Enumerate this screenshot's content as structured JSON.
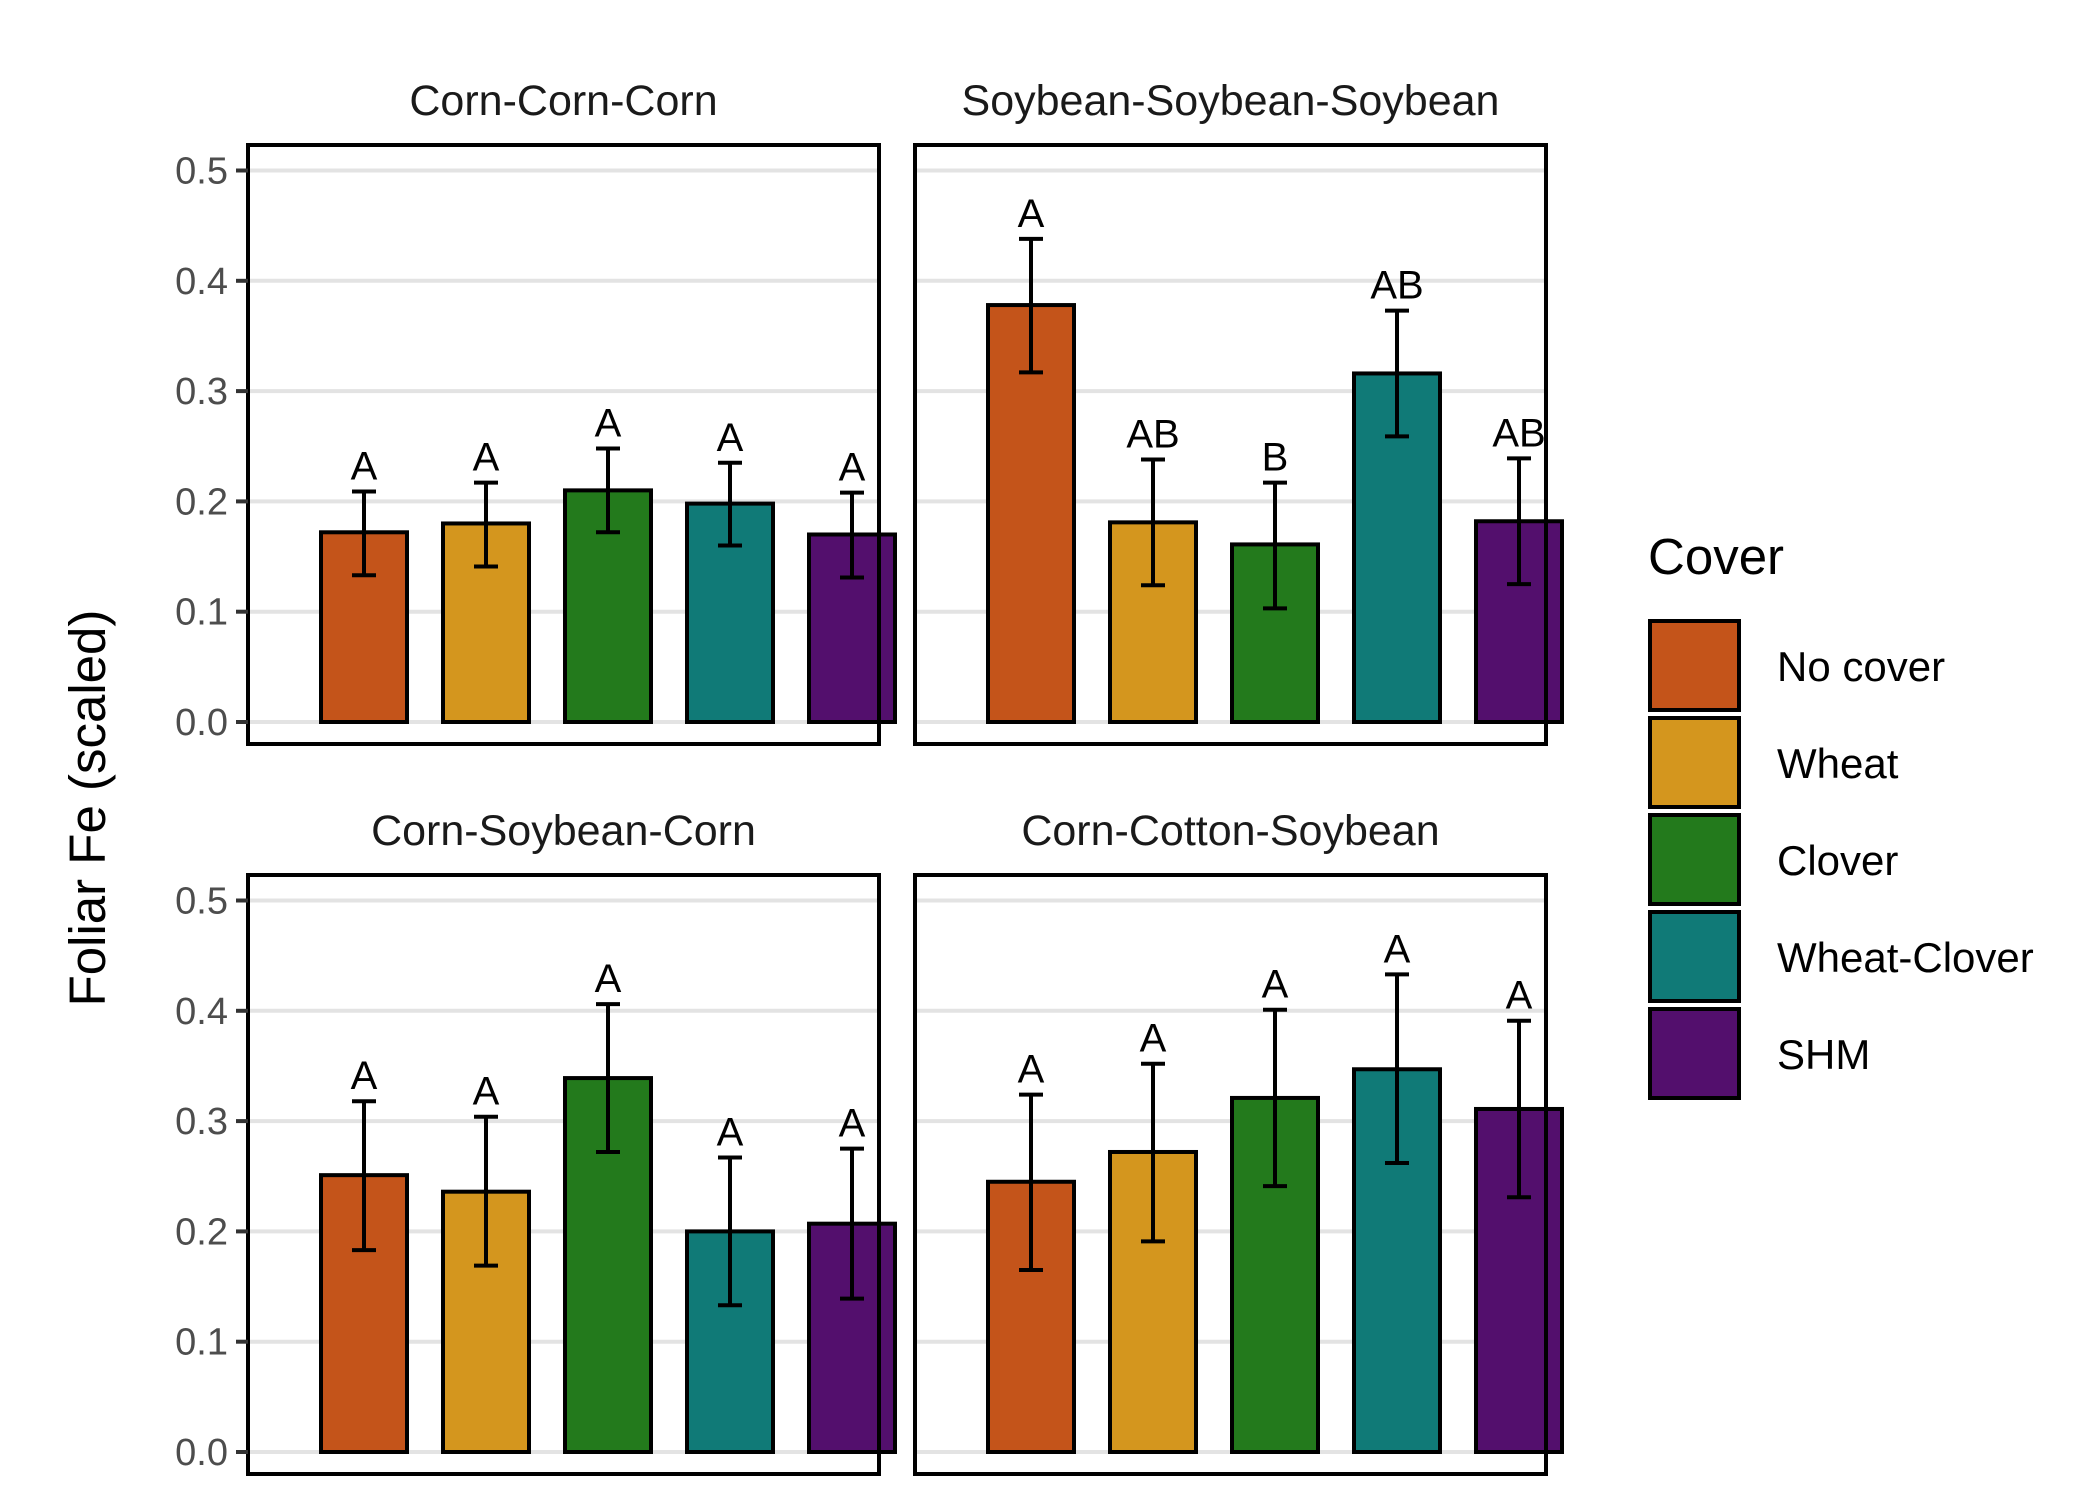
{
  "chart_data": {
    "type": "bar",
    "ylabel": "Foliar Fe (scaled)",
    "ylim": [
      0,
      0.52
    ],
    "yticks": [
      "0.0",
      "0.1",
      "0.2",
      "0.3",
      "0.4",
      "0.5"
    ],
    "grid": true,
    "legend": {
      "title": "Cover",
      "placement": "right",
      "items": [
        {
          "label": "No cover",
          "color": "#C4541A"
        },
        {
          "label": "Wheat",
          "color": "#D4961E"
        },
        {
          "label": "Clover",
          "color": "#237A1C"
        },
        {
          "label": "Wheat-Clover",
          "color": "#107A77"
        },
        {
          "label": "SHM",
          "color": "#530F6D"
        }
      ]
    },
    "panels": [
      {
        "title": "Corn-Corn-Corn",
        "values": [
          0.172,
          0.18,
          0.21,
          0.198,
          0.17
        ],
        "error_low": [
          0.133,
          0.141,
          0.172,
          0.16,
          0.131
        ],
        "error_high": [
          0.209,
          0.217,
          0.248,
          0.235,
          0.208
        ],
        "letters": [
          "A",
          "A",
          "A",
          "A",
          "A"
        ]
      },
      {
        "title": "Soybean-Soybean-Soybean",
        "values": [
          0.378,
          0.181,
          0.161,
          0.316,
          0.182
        ],
        "error_low": [
          0.317,
          0.124,
          0.103,
          0.259,
          0.125
        ],
        "error_high": [
          0.438,
          0.238,
          0.217,
          0.373,
          0.239
        ],
        "letters": [
          "A",
          "AB",
          "B",
          "AB",
          "AB"
        ]
      },
      {
        "title": "Corn-Soybean-Corn",
        "values": [
          0.251,
          0.236,
          0.339,
          0.2,
          0.207
        ],
        "error_low": [
          0.183,
          0.169,
          0.272,
          0.133,
          0.139
        ],
        "error_high": [
          0.318,
          0.304,
          0.406,
          0.267,
          0.275
        ],
        "letters": [
          "A",
          "A",
          "A",
          "A",
          "A"
        ]
      },
      {
        "title": "Corn-Cotton-Soybean",
        "values": [
          0.245,
          0.272,
          0.321,
          0.347,
          0.311
        ],
        "error_low": [
          0.165,
          0.191,
          0.241,
          0.262,
          0.231
        ],
        "error_high": [
          0.324,
          0.352,
          0.401,
          0.433,
          0.391
        ],
        "letters": [
          "A",
          "A",
          "A",
          "A",
          "A"
        ]
      }
    ]
  }
}
